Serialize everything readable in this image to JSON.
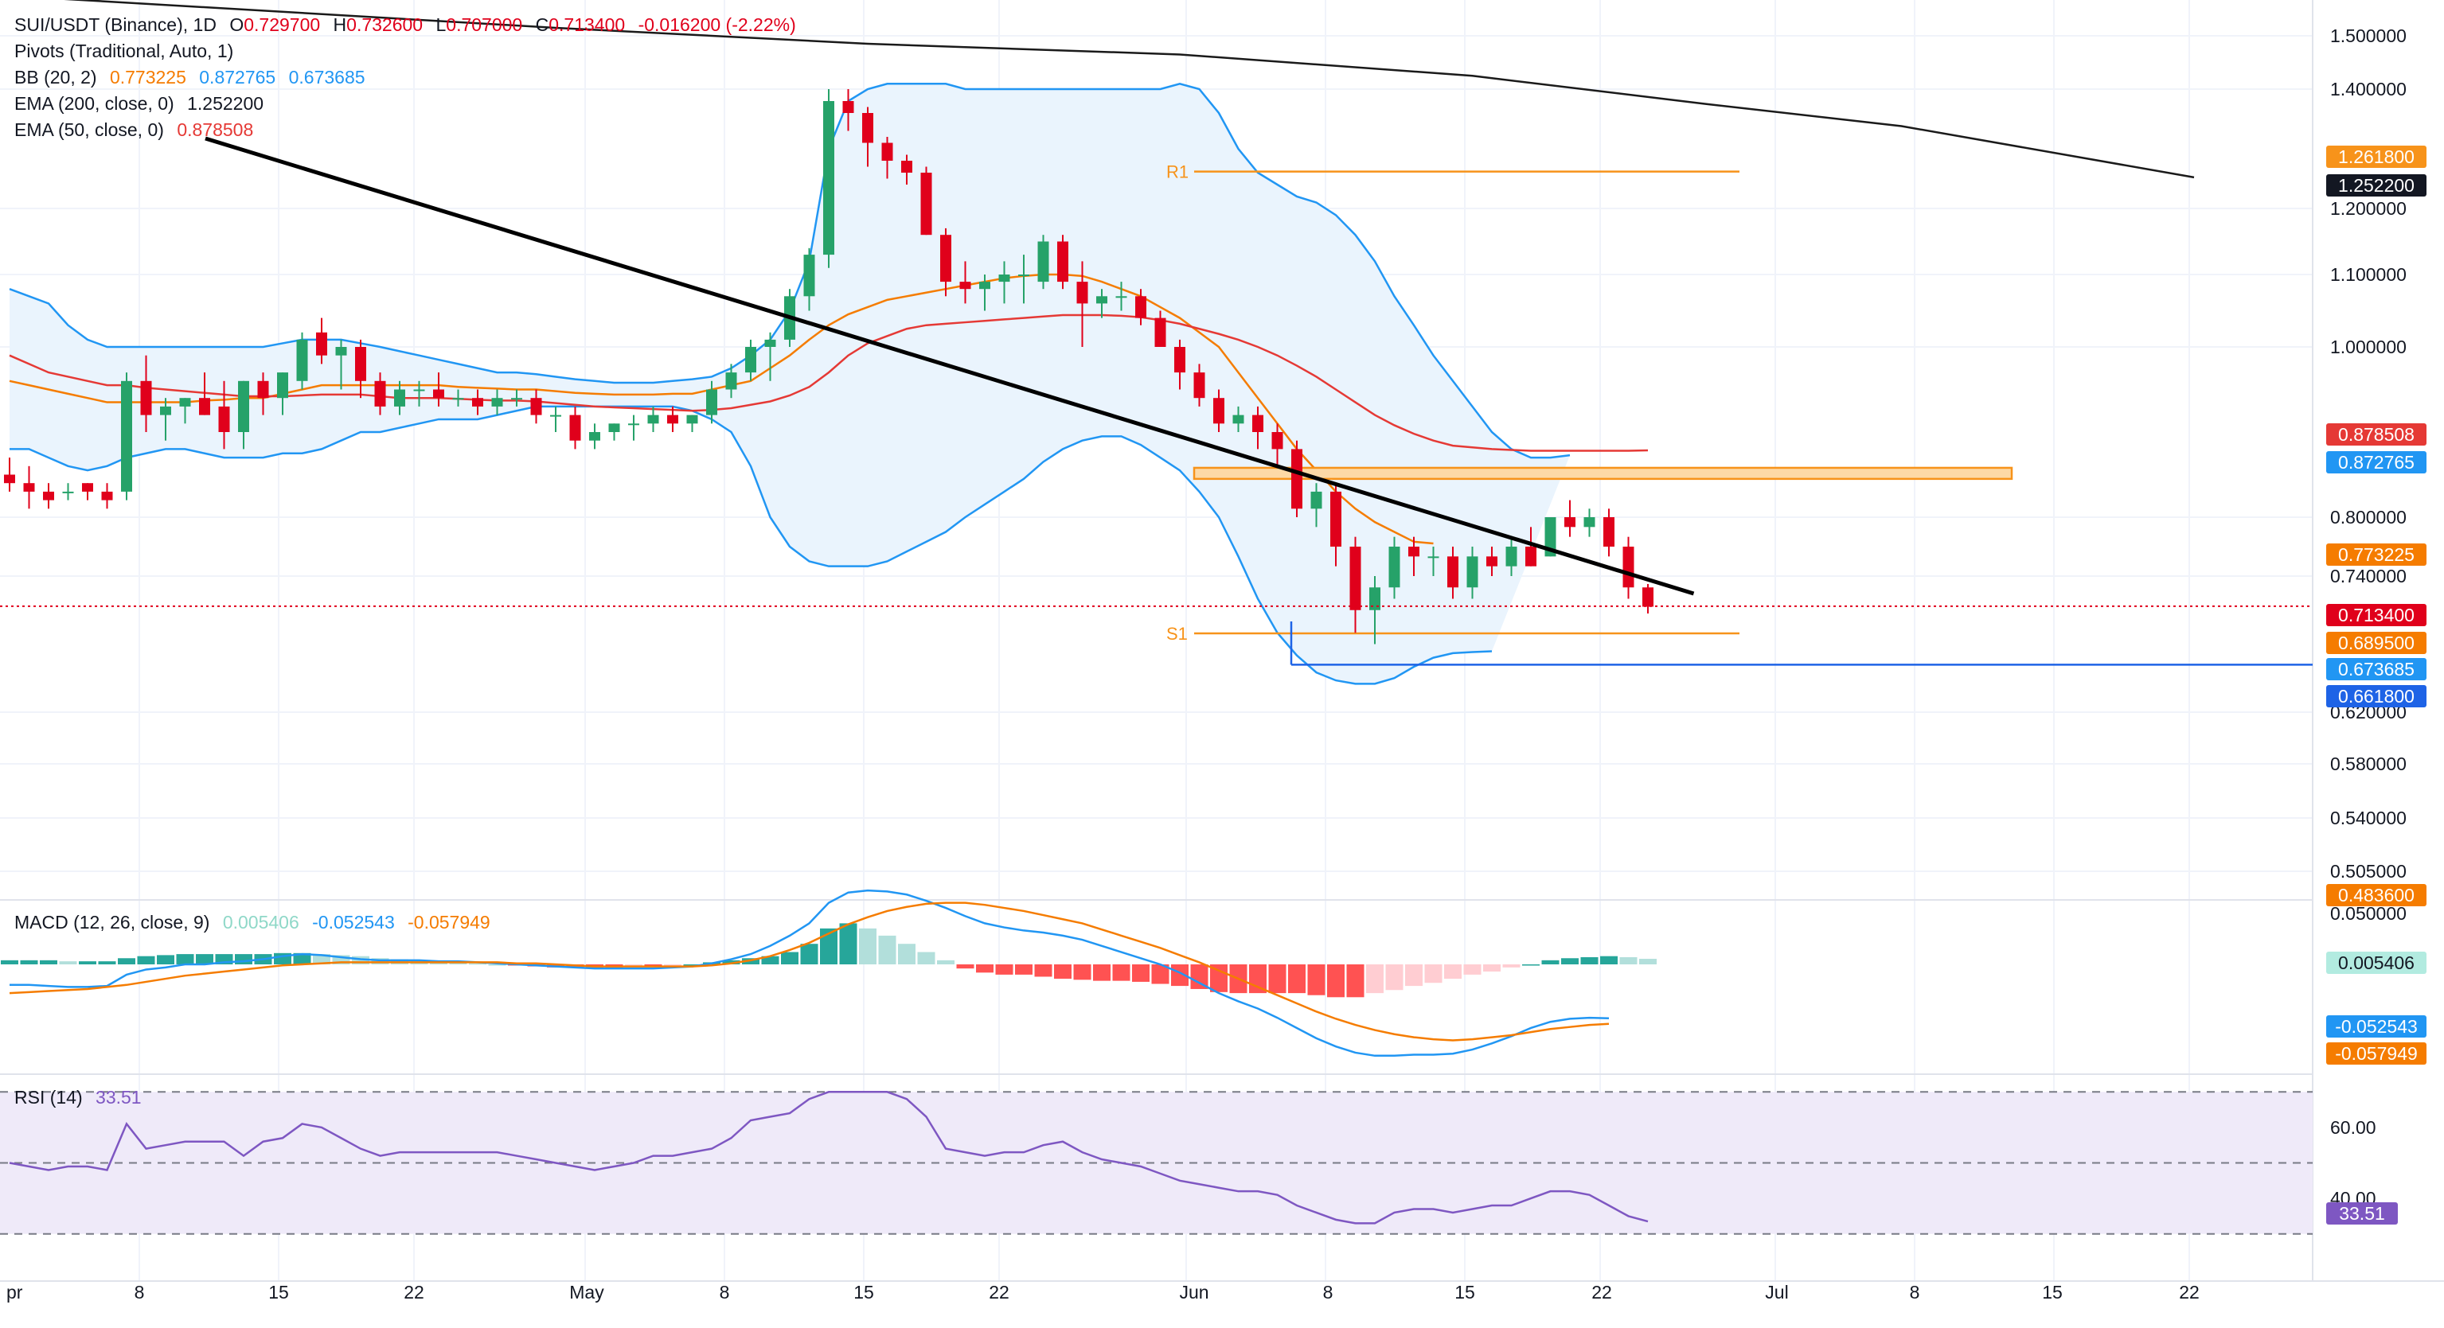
{
  "header": {
    "symbol": "SUI/USDT (Binance), 1D",
    "o_label": "O",
    "o_val": "0.729700",
    "h_label": "H",
    "h_val": "0.732600",
    "l_label": "L",
    "l_val": "0.707000",
    "c_label": "C",
    "c_val": "0.713400",
    "change": "-0.016200 (-2.22%)"
  },
  "indicators": {
    "pivots": "Pivots (Traditional, Auto, 1)",
    "bb_label": "BB (20, 2)",
    "bb_mid": "0.773225",
    "bb_up": "0.872765",
    "bb_lo": "0.673685",
    "ema200_label": "EMA (200, close, 0)",
    "ema200_val": "1.252200",
    "ema50_label": "EMA (50, close, 0)",
    "ema50_val": "0.878508",
    "macd_label": "MACD (12, 26, close, 9)",
    "macd_hist": "0.005406",
    "macd_line": "-0.052543",
    "macd_signal": "-0.057949",
    "rsi_label": "RSI (14)",
    "rsi_val": "33.51"
  },
  "pivot_labels": {
    "r1": "R1",
    "s1": "S1"
  },
  "price_axis": [
    "1.500000",
    "1.400000",
    "1.200000",
    "1.100000",
    "1.000000",
    "0.800000",
    "0.740000",
    "0.620000",
    "0.580000",
    "0.540000",
    "0.505000"
  ],
  "macd_axis": [
    "0.050000"
  ],
  "rsi_axis": [
    "60.00",
    "40.00"
  ],
  "time_axis": [
    "pr",
    "8",
    "15",
    "22",
    "May",
    "8",
    "15",
    "22",
    "Jun",
    "8",
    "15",
    "22",
    "Jul",
    "8",
    "15",
    "22"
  ],
  "price_tags": [
    {
      "text": "1.261800",
      "color": "#f7931a"
    },
    {
      "text": "1.252200",
      "color": "#131722"
    },
    {
      "text": "0.878508",
      "color": "#e53935"
    },
    {
      "text": "0.872765",
      "color": "#2196f3"
    },
    {
      "text": "0.773225",
      "color": "#f57c00"
    },
    {
      "text": "0.713400",
      "color": "#e0001b"
    },
    {
      "text": "0.689500",
      "color": "#f57c00"
    },
    {
      "text": "0.673685",
      "color": "#2196f3"
    },
    {
      "text": "0.661800",
      "color": "#1e63e6"
    },
    {
      "text": "0.483600",
      "color": "#f57c00"
    }
  ],
  "macd_tags": [
    {
      "text": "0.005406",
      "color": "#b2ebe0",
      "textColor": "#131722"
    },
    {
      "text": "-0.052543",
      "color": "#2196f3",
      "textColor": "#ffffff"
    },
    {
      "text": "-0.057949",
      "color": "#f57c00",
      "textColor": "#ffffff"
    }
  ],
  "rsi_tag": {
    "text": "33.51",
    "color": "#7e57c2"
  },
  "colors": {
    "up": "#26a269",
    "down": "#e0001b",
    "bb": "#2196f3",
    "bb_fill": "#eaf4fd",
    "ema50": "#e53935",
    "ema200": "#1a1a1a",
    "bb_mid": "#f57c00",
    "pivot": "#f7931a",
    "rsi": "#7e57c2",
    "rsi_fill": "#efeaf9",
    "macd_line": "#2196f3",
    "signal": "#f57c00"
  },
  "chart_data": {
    "type": "candlestick",
    "title": "SUI/USDT (Binance), 1D",
    "x_start_label": "Apr",
    "ohlc": [
      [
        0.85,
        0.87,
        0.83,
        0.84
      ],
      [
        0.84,
        0.86,
        0.81,
        0.83
      ],
      [
        0.83,
        0.84,
        0.81,
        0.82
      ],
      [
        0.83,
        0.84,
        0.82,
        0.83
      ],
      [
        0.84,
        0.84,
        0.82,
        0.83
      ],
      [
        0.83,
        0.84,
        0.81,
        0.82
      ],
      [
        0.83,
        0.97,
        0.82,
        0.96
      ],
      [
        0.96,
        0.99,
        0.9,
        0.92
      ],
      [
        0.92,
        0.94,
        0.89,
        0.93
      ],
      [
        0.93,
        0.94,
        0.91,
        0.94
      ],
      [
        0.94,
        0.97,
        0.92,
        0.92
      ],
      [
        0.93,
        0.96,
        0.88,
        0.9
      ],
      [
        0.9,
        0.96,
        0.88,
        0.96
      ],
      [
        0.96,
        0.97,
        0.92,
        0.94
      ],
      [
        0.94,
        0.97,
        0.92,
        0.97
      ],
      [
        0.96,
        1.02,
        0.95,
        1.01
      ],
      [
        1.02,
        1.04,
        0.98,
        0.99
      ],
      [
        0.99,
        1.01,
        0.95,
        1.0
      ],
      [
        1.0,
        1.01,
        0.94,
        0.96
      ],
      [
        0.96,
        0.97,
        0.92,
        0.93
      ],
      [
        0.93,
        0.96,
        0.92,
        0.95
      ],
      [
        0.95,
        0.96,
        0.93,
        0.95
      ],
      [
        0.95,
        0.97,
        0.93,
        0.94
      ],
      [
        0.94,
        0.95,
        0.93,
        0.94
      ],
      [
        0.94,
        0.95,
        0.92,
        0.93
      ],
      [
        0.93,
        0.95,
        0.92,
        0.94
      ],
      [
        0.94,
        0.95,
        0.93,
        0.94
      ],
      [
        0.94,
        0.95,
        0.91,
        0.92
      ],
      [
        0.92,
        0.93,
        0.9,
        0.92
      ],
      [
        0.92,
        0.93,
        0.88,
        0.89
      ],
      [
        0.89,
        0.91,
        0.88,
        0.9
      ],
      [
        0.9,
        0.91,
        0.89,
        0.91
      ],
      [
        0.91,
        0.92,
        0.89,
        0.91
      ],
      [
        0.91,
        0.93,
        0.9,
        0.92
      ],
      [
        0.92,
        0.93,
        0.9,
        0.91
      ],
      [
        0.91,
        0.92,
        0.9,
        0.92
      ],
      [
        0.92,
        0.96,
        0.91,
        0.95
      ],
      [
        0.95,
        0.98,
        0.94,
        0.97
      ],
      [
        0.97,
        1.01,
        0.96,
        1.0
      ],
      [
        1.0,
        1.02,
        0.96,
        1.01
      ],
      [
        1.01,
        1.08,
        1.0,
        1.07
      ],
      [
        1.07,
        1.14,
        1.05,
        1.13
      ],
      [
        1.13,
        1.4,
        1.11,
        1.38
      ],
      [
        1.38,
        1.4,
        1.33,
        1.36
      ],
      [
        1.36,
        1.37,
        1.27,
        1.31
      ],
      [
        1.31,
        1.32,
        1.25,
        1.28
      ],
      [
        1.28,
        1.29,
        1.24,
        1.26
      ],
      [
        1.26,
        1.27,
        1.16,
        1.16
      ],
      [
        1.16,
        1.17,
        1.07,
        1.09
      ],
      [
        1.09,
        1.12,
        1.06,
        1.08
      ],
      [
        1.08,
        1.1,
        1.05,
        1.09
      ],
      [
        1.09,
        1.12,
        1.06,
        1.1
      ],
      [
        1.1,
        1.13,
        1.06,
        1.1
      ],
      [
        1.09,
        1.16,
        1.08,
        1.15
      ],
      [
        1.15,
        1.16,
        1.08,
        1.09
      ],
      [
        1.09,
        1.12,
        1.0,
        1.06
      ],
      [
        1.06,
        1.08,
        1.04,
        1.07
      ],
      [
        1.07,
        1.09,
        1.05,
        1.07
      ],
      [
        1.07,
        1.08,
        1.03,
        1.04
      ],
      [
        1.04,
        1.05,
        1.0,
        1.0
      ],
      [
        1.0,
        1.01,
        0.95,
        0.97
      ],
      [
        0.97,
        0.98,
        0.93,
        0.94
      ],
      [
        0.94,
        0.95,
        0.9,
        0.91
      ],
      [
        0.91,
        0.93,
        0.9,
        0.92
      ],
      [
        0.92,
        0.93,
        0.88,
        0.9
      ],
      [
        0.9,
        0.91,
        0.86,
        0.88
      ],
      [
        0.88,
        0.89,
        0.8,
        0.81
      ],
      [
        0.81,
        0.84,
        0.79,
        0.83
      ],
      [
        0.83,
        0.84,
        0.75,
        0.77
      ],
      [
        0.77,
        0.78,
        0.69,
        0.71
      ],
      [
        0.71,
        0.74,
        0.68,
        0.73
      ],
      [
        0.73,
        0.78,
        0.72,
        0.77
      ],
      [
        0.77,
        0.78,
        0.74,
        0.76
      ],
      [
        0.76,
        0.77,
        0.74,
        0.76
      ],
      [
        0.76,
        0.77,
        0.72,
        0.73
      ],
      [
        0.73,
        0.77,
        0.72,
        0.76
      ],
      [
        0.76,
        0.77,
        0.74,
        0.75
      ],
      [
        0.75,
        0.78,
        0.74,
        0.77
      ],
      [
        0.77,
        0.79,
        0.75,
        0.75
      ],
      [
        0.76,
        0.8,
        0.76,
        0.8
      ],
      [
        0.8,
        0.82,
        0.78,
        0.79
      ],
      [
        0.79,
        0.81,
        0.78,
        0.8
      ],
      [
        0.8,
        0.81,
        0.76,
        0.77
      ],
      [
        0.77,
        0.78,
        0.72,
        0.73
      ],
      [
        0.73,
        0.733,
        0.707,
        0.713
      ]
    ],
    "ema200": [
      [
        0,
        1.575
      ],
      [
        28,
        1.515
      ],
      [
        44,
        1.485
      ],
      [
        60,
        1.465
      ],
      [
        75,
        1.425
      ],
      [
        87,
        1.375
      ],
      [
        97,
        1.338
      ],
      [
        112,
        1.2522
      ]
    ],
    "ema50": [
      0.99,
      0.98,
      0.97,
      0.965,
      0.96,
      0.955,
      0.955,
      0.952,
      0.95,
      0.948,
      0.946,
      0.944,
      0.942,
      0.942,
      0.942,
      0.943,
      0.944,
      0.944,
      0.944,
      0.942,
      0.94,
      0.94,
      0.94,
      0.939,
      0.938,
      0.937,
      0.937,
      0.936,
      0.934,
      0.932,
      0.93,
      0.929,
      0.928,
      0.927,
      0.926,
      0.925,
      0.926,
      0.928,
      0.932,
      0.936,
      0.943,
      0.953,
      0.97,
      0.99,
      1.005,
      1.015,
      1.025,
      1.03,
      1.032,
      1.034,
      1.036,
      1.038,
      1.04,
      1.042,
      1.044,
      1.044,
      1.044,
      1.043,
      1.041,
      1.037,
      1.032,
      1.025,
      1.018,
      1.01,
      1.0,
      0.99,
      0.978,
      0.965,
      0.95,
      0.935,
      0.92,
      0.908,
      0.898,
      0.89,
      0.884,
      0.882,
      0.88,
      0.879,
      0.878,
      0.878,
      0.878,
      0.878,
      0.878,
      0.878,
      0.8785
    ],
    "bb_upper": [
      1.08,
      1.07,
      1.06,
      1.03,
      1.01,
      1.0,
      1.0,
      1.0,
      1.0,
      1.0,
      1.0,
      1.0,
      1.0,
      1.0,
      1.005,
      1.01,
      1.01,
      1.01,
      1.005,
      1.0,
      0.995,
      0.99,
      0.985,
      0.98,
      0.975,
      0.97,
      0.97,
      0.968,
      0.965,
      0.962,
      0.96,
      0.958,
      0.958,
      0.958,
      0.96,
      0.962,
      0.965,
      0.975,
      0.99,
      1.01,
      1.05,
      1.12,
      1.3,
      1.38,
      1.4,
      1.41,
      1.41,
      1.41,
      1.41,
      1.4,
      1.4,
      1.4,
      1.4,
      1.4,
      1.4,
      1.4,
      1.4,
      1.4,
      1.4,
      1.4,
      1.41,
      1.4,
      1.36,
      1.3,
      1.26,
      1.24,
      1.22,
      1.21,
      1.19,
      1.16,
      1.12,
      1.07,
      1.03,
      0.99,
      0.96,
      0.93,
      0.9,
      0.88,
      0.87,
      0.87,
      0.872765
    ],
    "bb_lower": [
      0.88,
      0.88,
      0.87,
      0.86,
      0.855,
      0.86,
      0.87,
      0.875,
      0.88,
      0.88,
      0.875,
      0.87,
      0.87,
      0.87,
      0.875,
      0.875,
      0.88,
      0.89,
      0.9,
      0.9,
      0.905,
      0.91,
      0.915,
      0.915,
      0.915,
      0.92,
      0.925,
      0.93,
      0.93,
      0.93,
      0.93,
      0.93,
      0.93,
      0.93,
      0.93,
      0.925,
      0.915,
      0.9,
      0.86,
      0.8,
      0.77,
      0.755,
      0.75,
      0.75,
      0.75,
      0.755,
      0.765,
      0.775,
      0.785,
      0.8,
      0.815,
      0.83,
      0.845,
      0.865,
      0.88,
      0.89,
      0.895,
      0.895,
      0.885,
      0.87,
      0.855,
      0.83,
      0.8,
      0.76,
      0.72,
      0.69,
      0.67,
      0.655,
      0.648,
      0.645,
      0.645,
      0.65,
      0.66,
      0.668,
      0.672,
      0.673,
      0.673685
    ],
    "bb_mid": [
      0.96,
      0.955,
      0.95,
      0.945,
      0.94,
      0.935,
      0.935,
      0.935,
      0.935,
      0.935,
      0.937,
      0.938,
      0.94,
      0.94,
      0.945,
      0.95,
      0.955,
      0.955,
      0.955,
      0.955,
      0.955,
      0.955,
      0.955,
      0.953,
      0.952,
      0.951,
      0.95,
      0.95,
      0.948,
      0.946,
      0.945,
      0.944,
      0.944,
      0.944,
      0.945,
      0.945,
      0.95,
      0.955,
      0.96,
      0.975,
      0.99,
      1.01,
      1.03,
      1.045,
      1.055,
      1.065,
      1.07,
      1.075,
      1.08,
      1.085,
      1.09,
      1.095,
      1.098,
      1.1,
      1.1,
      1.098,
      1.09,
      1.08,
      1.07,
      1.055,
      1.04,
      1.02,
      1.0,
      0.97,
      0.94,
      0.91,
      0.88,
      0.855,
      0.83,
      0.81,
      0.795,
      0.785,
      0.775,
      0.773225
    ],
    "pivots": {
      "R1": 1.2618,
      "S1": 0.6895
    },
    "trendline": [
      [
        10,
        1.3
      ],
      [
        79,
        0.74
      ]
    ],
    "resistance_zone": [
      0.845,
      0.858
    ],
    "last_price": 0.7134,
    "ylim": [
      0.49,
      1.5
    ],
    "macd": {
      "hist": [
        0.004,
        0.004,
        0.004,
        0.003,
        0.003,
        0.003,
        0.006,
        0.008,
        0.009,
        0.01,
        0.01,
        0.01,
        0.01,
        0.01,
        0.011,
        0.011,
        0.01,
        0.009,
        0.008,
        0.006,
        0.005,
        0.004,
        0.003,
        0.002,
        0.001,
        0.0,
        -0.001,
        -0.002,
        -0.003,
        -0.003,
        -0.003,
        -0.003,
        -0.002,
        -0.002,
        -0.001,
        0.0,
        0.002,
        0.004,
        0.006,
        0.008,
        0.012,
        0.02,
        0.035,
        0.04,
        0.035,
        0.028,
        0.02,
        0.012,
        0.004,
        -0.004,
        -0.008,
        -0.01,
        -0.01,
        -0.012,
        -0.014,
        -0.015,
        -0.016,
        -0.016,
        -0.017,
        -0.019,
        -0.021,
        -0.024,
        -0.027,
        -0.028,
        -0.028,
        -0.028,
        -0.028,
        -0.03,
        -0.032,
        -0.032,
        -0.028,
        -0.025,
        -0.021,
        -0.018,
        -0.014,
        -0.01,
        -0.007,
        -0.003,
        0.0,
        0.004,
        0.006,
        0.007,
        0.008,
        0.007,
        0.005406
      ],
      "macd_line": [
        -0.02,
        -0.02,
        -0.021,
        -0.022,
        -0.022,
        -0.021,
        -0.01,
        -0.005,
        -0.003,
        0.0,
        0.0,
        0.002,
        0.003,
        0.005,
        0.008,
        0.01,
        0.009,
        0.007,
        0.005,
        0.004,
        0.004,
        0.004,
        0.003,
        0.003,
        0.002,
        0.001,
        0.0,
        -0.001,
        -0.002,
        -0.003,
        -0.004,
        -0.004,
        -0.004,
        -0.004,
        -0.003,
        -0.002,
        0.001,
        0.005,
        0.01,
        0.018,
        0.028,
        0.04,
        0.06,
        0.07,
        0.072,
        0.071,
        0.068,
        0.062,
        0.055,
        0.047,
        0.04,
        0.036,
        0.033,
        0.031,
        0.028,
        0.024,
        0.018,
        0.012,
        0.006,
        0.0,
        -0.008,
        -0.018,
        -0.028,
        -0.036,
        -0.043,
        -0.052,
        -0.062,
        -0.072,
        -0.08,
        -0.086,
        -0.089,
        -0.089,
        -0.088,
        -0.088,
        -0.087,
        -0.083,
        -0.077,
        -0.07,
        -0.062,
        -0.056,
        -0.053,
        -0.052,
        -0.052543
      ],
      "signal": [
        -0.028,
        -0.027,
        -0.026,
        -0.025,
        -0.024,
        -0.022,
        -0.02,
        -0.017,
        -0.014,
        -0.011,
        -0.009,
        -0.007,
        -0.005,
        -0.003,
        -0.001,
        0.0,
        0.001,
        0.002,
        0.002,
        0.002,
        0.002,
        0.002,
        0.002,
        0.002,
        0.002,
        0.002,
        0.001,
        0.001,
        0.0,
        -0.001,
        -0.002,
        -0.002,
        -0.002,
        -0.002,
        -0.002,
        -0.002,
        -0.001,
        0.001,
        0.004,
        0.008,
        0.014,
        0.021,
        0.03,
        0.039,
        0.046,
        0.052,
        0.056,
        0.059,
        0.06,
        0.06,
        0.058,
        0.055,
        0.052,
        0.048,
        0.044,
        0.04,
        0.034,
        0.028,
        0.022,
        0.016,
        0.009,
        0.002,
        -0.006,
        -0.014,
        -0.022,
        -0.03,
        -0.038,
        -0.046,
        -0.053,
        -0.059,
        -0.064,
        -0.068,
        -0.071,
        -0.073,
        -0.074,
        -0.073,
        -0.071,
        -0.069,
        -0.066,
        -0.063,
        -0.061,
        -0.059,
        -0.057949
      ],
      "ylim": [
        -0.1,
        0.06
      ]
    },
    "rsi": {
      "values": [
        50,
        49,
        48,
        49,
        49,
        48,
        61,
        54,
        55,
        56,
        56,
        56,
        52,
        56,
        57,
        61,
        60,
        57,
        54,
        52,
        53,
        53,
        53,
        53,
        53,
        53,
        52,
        51,
        50,
        49,
        48,
        49,
        50,
        52,
        52,
        53,
        54,
        57,
        62,
        63,
        64,
        68,
        70,
        70,
        70,
        70,
        68,
        63,
        54,
        53,
        52,
        53,
        53,
        55,
        56,
        53,
        51,
        50,
        49,
        47,
        45,
        44,
        43,
        42,
        42,
        41,
        38,
        36,
        34,
        33,
        33,
        36,
        37,
        37,
        36,
        37,
        38,
        38,
        40,
        42,
        42,
        41,
        38,
        35,
        33.51
      ],
      "levels": [
        70,
        50,
        30
      ],
      "ylim": [
        25,
        75
      ]
    }
  }
}
